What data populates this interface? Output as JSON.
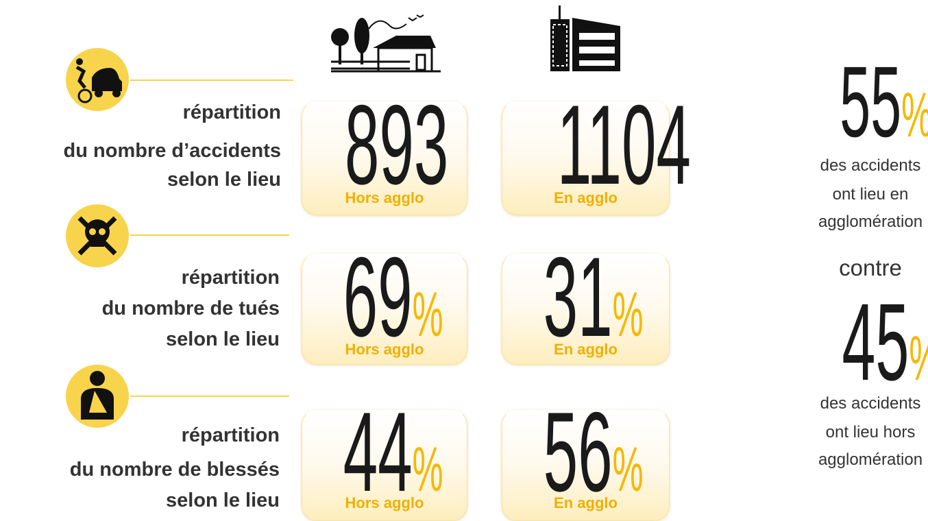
{
  "rows": [
    {
      "title": [
        "répartition",
        "du nombre d’accidents",
        "selon le lieu"
      ],
      "cells": [
        {
          "value": 893,
          "label": "Hors agglo"
        },
        {
          "value": 1104,
          "label": "En agglo"
        }
      ]
    },
    {
      "title": [
        "répartition",
        "du nombre de tués",
        "selon le lieu"
      ],
      "cells": [
        {
          "value": 69,
          "unit": "%",
          "label": "Hors agglo"
        },
        {
          "value": 31,
          "unit": "%",
          "label": "En agglo"
        }
      ]
    },
    {
      "title": [
        "répartition",
        "du nombre de blessés",
        "selon le lieu"
      ],
      "cells": [
        {
          "value": 44,
          "unit": "%",
          "label": "Hors agglo"
        },
        {
          "value": 56,
          "unit": "%",
          "label": "En agglo"
        }
      ]
    }
  ],
  "summary": [
    {
      "value": 55,
      "unit": "%",
      "text": [
        "des accidents",
        "ont lieu en",
        "agglomération"
      ]
    },
    {
      "value": 45,
      "unit": "%",
      "text": [
        "des accidents",
        "ont lieu hors",
        "agglomération"
      ]
    }
  ],
  "connector": "contre"
}
